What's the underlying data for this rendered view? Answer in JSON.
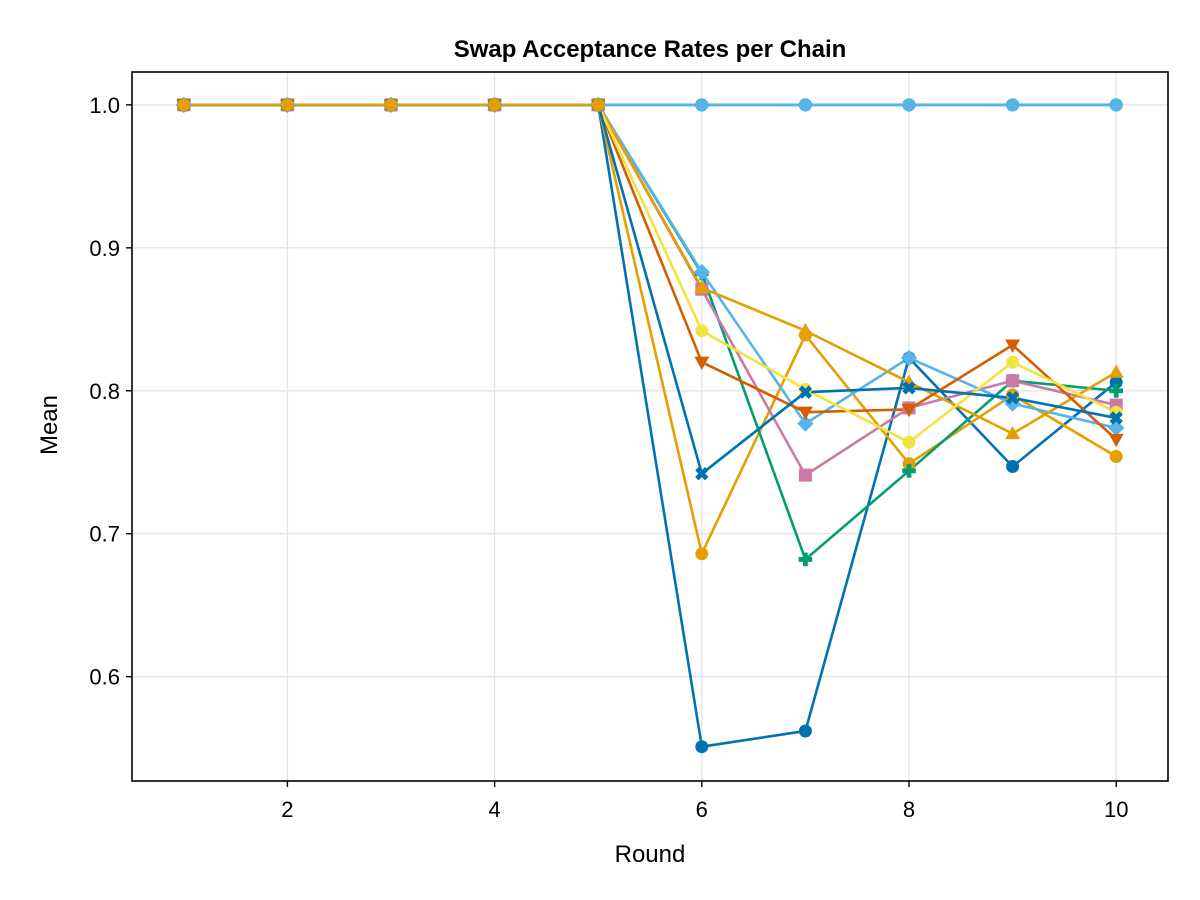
{
  "chart_data": {
    "type": "line",
    "title": "Swap Acceptance Rates per Chain",
    "xlabel": "Round",
    "ylabel": "Mean",
    "xlim": [
      0.5,
      10.5
    ],
    "ylim": [
      0.527,
      1.023
    ],
    "xticks": [
      2,
      4,
      6,
      8,
      10
    ],
    "yticks": [
      0.6,
      0.7,
      0.8,
      0.9,
      1.0
    ],
    "xtick_labels": [
      "2",
      "4",
      "6",
      "8",
      "10"
    ],
    "ytick_labels": [
      "0.6",
      "0.7",
      "0.8",
      "0.9",
      "1.0"
    ],
    "grid": true,
    "legend": "none",
    "x": [
      1,
      2,
      3,
      4,
      5,
      6,
      7,
      8,
      9,
      10
    ],
    "series": [
      {
        "color": "#0072b2",
        "marker": "circle",
        "values": [
          1.0,
          1.0,
          1.0,
          1.0,
          1.0,
          0.551,
          0.562,
          0.823,
          0.747,
          0.806
        ]
      },
      {
        "color": "#e69f00",
        "marker": "circle",
        "values": [
          1.0,
          1.0,
          1.0,
          1.0,
          1.0,
          0.686,
          0.839,
          0.749,
          0.797,
          0.754
        ]
      },
      {
        "color": "#009e73",
        "marker": "cross",
        "values": [
          1.0,
          1.0,
          1.0,
          1.0,
          1.0,
          0.882,
          0.682,
          0.744,
          0.807,
          0.8
        ]
      },
      {
        "color": "#cc79a7",
        "marker": "square",
        "values": [
          1.0,
          1.0,
          1.0,
          1.0,
          1.0,
          0.871,
          0.741,
          0.788,
          0.807,
          0.79
        ]
      },
      {
        "color": "#56b4e9",
        "marker": "diamond",
        "values": [
          1.0,
          1.0,
          1.0,
          1.0,
          1.0,
          0.883,
          0.777,
          0.823,
          0.791,
          0.774
        ]
      },
      {
        "color": "#e69f00",
        "marker": "triangle-up",
        "values": [
          1.0,
          1.0,
          1.0,
          1.0,
          1.0,
          0.872,
          0.842,
          0.806,
          0.77,
          0.813
        ]
      },
      {
        "color": "#d55e00",
        "marker": "triangle-down",
        "values": [
          1.0,
          1.0,
          1.0,
          1.0,
          1.0,
          0.82,
          0.785,
          0.787,
          0.832,
          0.766
        ]
      },
      {
        "color": "#f0e442",
        "marker": "circle",
        "values": [
          1.0,
          1.0,
          1.0,
          1.0,
          1.0,
          0.842,
          0.801,
          0.764,
          0.82,
          0.785
        ]
      },
      {
        "color": "#0072b2",
        "marker": "x",
        "values": [
          1.0,
          1.0,
          1.0,
          1.0,
          1.0,
          0.742,
          0.799,
          0.802,
          0.795,
          0.781
        ]
      },
      {
        "color": "#0072b2",
        "marker": "circle",
        "values": [
          1.0,
          1.0,
          1.0,
          1.0,
          1.0,
          1.0,
          1.0,
          1.0,
          1.0,
          1.0
        ]
      },
      {
        "color": "#009e73",
        "marker": "circle",
        "values": [
          1.0,
          1.0,
          1.0,
          1.0,
          1.0,
          1.0,
          1.0,
          1.0,
          1.0,
          1.0
        ]
      },
      {
        "color": "#56b4e9",
        "marker": "circle",
        "values": [
          1.0,
          1.0,
          1.0,
          1.0,
          1.0,
          1.0,
          1.0,
          1.0,
          1.0,
          1.0
        ]
      },
      {
        "color": "#e69f00",
        "marker": "circle",
        "values": [
          1.0,
          1.0,
          1.0,
          1.0,
          1.0,
          null,
          null,
          null,
          null,
          null
        ]
      }
    ]
  }
}
